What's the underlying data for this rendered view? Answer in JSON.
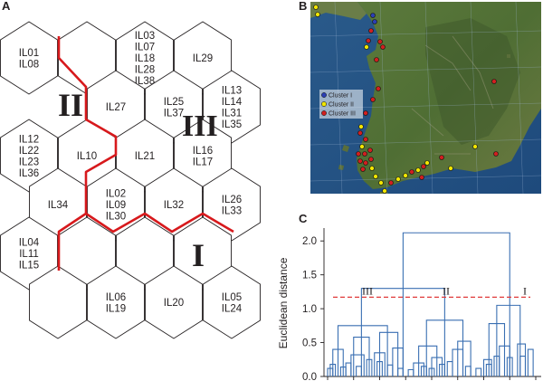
{
  "panels": {
    "a": "A",
    "b": "B",
    "c": "C"
  },
  "som_cells": [
    {
      "lines": [
        "IL01",
        "IL08"
      ]
    },
    {
      "lines": []
    },
    {
      "lines": [
        "IL03",
        "IL07",
        "IL18",
        "IL28",
        "IL38"
      ]
    },
    {
      "lines": [
        "IL29"
      ]
    },
    {
      "lines": [
        "IL27"
      ]
    },
    {
      "lines": [
        "IL25",
        "IL37"
      ]
    },
    {
      "lines": [
        "IL13",
        "IL14",
        "IL31",
        "IL35"
      ]
    },
    {
      "lines": [
        "IL12",
        "IL22",
        "IL23",
        "IL36"
      ]
    },
    {
      "lines": [
        "IL10"
      ]
    },
    {
      "lines": [
        "IL21"
      ]
    },
    {
      "lines": [
        "IL16",
        "IL17"
      ]
    },
    {
      "lines": [
        "IL34"
      ]
    },
    {
      "lines": [
        "IL02",
        "IL09",
        "IL30"
      ]
    },
    {
      "lines": [
        "IL32"
      ]
    },
    {
      "lines": [
        "IL26",
        "IL33"
      ]
    },
    {
      "lines": [
        "IL04",
        "IL11",
        "IL15"
      ]
    },
    {
      "lines": []
    },
    {
      "lines": []
    },
    {
      "lines": []
    },
    {
      "lines": []
    },
    {
      "lines": [
        "IL06",
        "IL19"
      ]
    },
    {
      "lines": [
        "IL20"
      ]
    },
    {
      "lines": [
        "IL05",
        "IL24"
      ]
    }
  ],
  "som_cluster_marks": [
    "II",
    "III",
    "I"
  ],
  "map": {
    "legend": [
      {
        "label": "Cluster I",
        "color": "#2b3fb5"
      },
      {
        "label": "Cluster II",
        "color": "#f2e600"
      },
      {
        "label": "Cluster III",
        "color": "#d11f1f"
      }
    ]
  },
  "chart_data": {
    "type": "dendrogram",
    "ylabel": "Euclidean distance",
    "yticks": [
      "0.0",
      "0.5",
      "1.0",
      "1.5",
      "2.0"
    ],
    "ylim": [
      0,
      2.15
    ],
    "cut_height": 1.17,
    "cluster_labels": [
      "III",
      "II",
      "I"
    ],
    "links": [
      {
        "x1": 2,
        "x2": 6,
        "h": 0.4
      },
      {
        "x1": 9,
        "x2": 14,
        "h": 0.32
      },
      {
        "x1": 18,
        "x2": 22,
        "h": 0.35
      },
      {
        "x1": 25,
        "x2": 29,
        "h": 0.42
      },
      {
        "x1": 10,
        "x2": 16,
        "h": 0.58
      },
      {
        "x1": 20,
        "x2": 27,
        "h": 0.65
      },
      {
        "x1": 4,
        "x2": 23,
        "h": 0.75
      },
      {
        "x1": 33,
        "x2": 37,
        "h": 0.2
      },
      {
        "x1": 40,
        "x2": 44,
        "h": 0.28
      },
      {
        "x1": 35,
        "x2": 42,
        "h": 0.45
      },
      {
        "x1": 48,
        "x2": 52,
        "h": 0.4
      },
      {
        "x1": 50,
        "x2": 55,
        "h": 0.52
      },
      {
        "x1": 38,
        "x2": 52,
        "h": 0.83
      },
      {
        "x1": 60,
        "x2": 63,
        "h": 0.25
      },
      {
        "x1": 66,
        "x2": 70,
        "h": 0.45
      },
      {
        "x1": 73,
        "x2": 76,
        "h": 0.48
      },
      {
        "x1": 62,
        "x2": 68,
        "h": 0.78
      },
      {
        "x1": 65,
        "x2": 74,
        "h": 1.05
      },
      {
        "x1": 13,
        "x2": 45,
        "h": 1.3
      },
      {
        "x1": 29,
        "x2": 70,
        "h": 2.12
      }
    ]
  }
}
